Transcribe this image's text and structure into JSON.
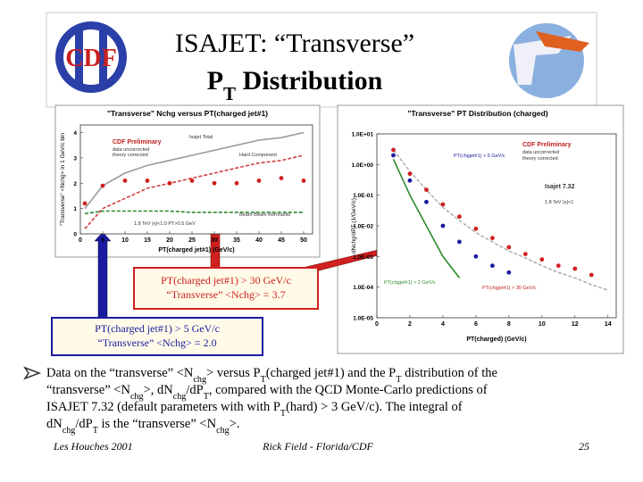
{
  "header": {
    "logo_text": "CDF",
    "title_line1": "ISAJET: “Transverse”",
    "title_line2": [
      "P",
      {
        "sub": "T"
      },
      " Distribution"
    ]
  },
  "chart_data": [
    {
      "type": "line",
      "title": "\"Transverse\" Nchg versus PT(charged jet#1)",
      "x_label": "PT(charged jet#1) (GeV/c)",
      "y_label": "\"Transverse\" <Nchg> in 1 GeV/c bin",
      "x": [
        1,
        5,
        10,
        15,
        20,
        25,
        30,
        35,
        40,
        45,
        50
      ],
      "xlim": [
        0,
        52
      ],
      "xticks": [
        0,
        5,
        10,
        15,
        20,
        25,
        30,
        35,
        40,
        45,
        50
      ],
      "ylim": [
        0,
        4.3
      ],
      "yticks": [
        0,
        1,
        2,
        3,
        4
      ],
      "log_y": false,
      "annotations": [
        "CDF Preliminary",
        "data uncorrected",
        "theory corrected",
        "Isajet Total",
        "Hard Component",
        "Beam-Beam Remnants",
        "1.8 TeV |η|<1.0 PT>0.5 GeV"
      ],
      "series": [
        {
          "name": "Isajet Total",
          "color": "#9a9a9a",
          "style": "line",
          "dashed": false,
          "values": [
            1.0,
            1.9,
            2.4,
            2.7,
            2.9,
            3.1,
            3.3,
            3.5,
            3.7,
            3.8,
            4.0
          ]
        },
        {
          "name": "Hard Component",
          "color": "#d04040",
          "style": "line",
          "dashed": true,
          "values": [
            0.2,
            1.0,
            1.4,
            1.8,
            2.0,
            2.2,
            2.4,
            2.6,
            2.8,
            2.9,
            3.1
          ]
        },
        {
          "name": "Beam-Beam Remnants",
          "color": "#2a8a2a",
          "style": "line",
          "dashed": true,
          "values": [
            0.8,
            0.9,
            0.9,
            0.9,
            0.9,
            0.85,
            0.85,
            0.85,
            0.85,
            0.85,
            0.85
          ]
        },
        {
          "name": "data",
          "color": "#d02020",
          "style": "markers",
          "dashed": false,
          "values": [
            1.2,
            1.9,
            2.1,
            2.1,
            2.0,
            2.1,
            2.0,
            2.0,
            2.1,
            2.2,
            2.1
          ]
        }
      ]
    },
    {
      "type": "line",
      "title": "\"Transverse\" PT Distribution (charged)",
      "x_label": "PT(charged) (GeV/c)",
      "y_label": "dNchg/dPT (1/GeV/c)",
      "x": [
        1,
        2,
        3,
        4,
        5,
        6,
        7,
        8,
        9,
        10,
        11,
        12,
        13,
        14
      ],
      "xlim": [
        0,
        14.5
      ],
      "xticks": [
        0,
        2,
        4,
        6,
        8,
        10,
        12,
        14
      ],
      "ylim": [
        1e-05,
        10
      ],
      "yticks": [
        {
          "value": 10,
          "label": "1.0E+01"
        },
        {
          "value": 1,
          "label": "1.0E+00"
        },
        {
          "value": 0.1,
          "label": "1.0E-01"
        },
        {
          "value": 0.01,
          "label": "1.0E-02"
        },
        {
          "value": 0.001,
          "label": "1.0E-03"
        },
        {
          "value": 0.0001,
          "label": "1.0E-04"
        },
        {
          "value": 1e-05,
          "label": "1.0E-05"
        }
      ],
      "log_y": true,
      "annotations": [
        "CDF Preliminary",
        "data uncorrected",
        "theory corrected",
        "Isajet 7.32",
        "1.8 TeV |η|<1",
        "PT(chgjet#1) > 5 GeV/c",
        "PT(chgjet#1) > 2 GeV/c",
        "PT(chgjet#1) > 30 GeV/c"
      ],
      "series": [
        {
          "name": "Isajet > 30 GeV/c",
          "color": "#b0b0b0",
          "style": "line",
          "dashed": true,
          "values": [
            3,
            0.6,
            0.15,
            0.04,
            0.015,
            0.006,
            0.003,
            0.0015,
            0.0009,
            0.0005,
            0.0003,
            0.0002,
            0.00012,
            8e-05
          ]
        },
        {
          "name": "Isajet > 5 GeV/c",
          "color": "#2a8a2a",
          "style": "line",
          "dashed": false,
          "values": [
            1.5,
            0.1,
            0.01,
            0.001,
            0.0002,
            null,
            null,
            null,
            null,
            null,
            null,
            null,
            null,
            null
          ]
        },
        {
          "name": "data > 30 GeV/c",
          "color": "#d02020",
          "style": "markers",
          "dashed": false,
          "values": [
            3,
            0.5,
            0.15,
            0.05,
            0.02,
            0.008,
            0.004,
            0.002,
            0.0012,
            0.0008,
            0.0005,
            0.0004,
            0.00025,
            null
          ]
        },
        {
          "name": "data > 5 GeV/c",
          "color": "#1a1aa0",
          "style": "markers",
          "dashed": false,
          "values": [
            2,
            0.3,
            0.06,
            0.01,
            0.003,
            0.001,
            0.0005,
            0.0003,
            null,
            null,
            null,
            null,
            null,
            null
          ]
        }
      ]
    }
  ],
  "callouts": [
    {
      "color": "#d02020",
      "lines": [
        "PT(charged jet#1) > 30 GeV/c",
        "“Transverse” <Nchg> = 3.7"
      ]
    },
    {
      "color": "#1a1aa0",
      "lines": [
        "PT(charged jet#1) > 5 GeV/c",
        "“Transverse” <Nchg> = 2.0"
      ]
    }
  ],
  "body": {
    "lines": [
      [
        "Data on the “transverse” <N",
        {
          "sub": "chg"
        },
        "> versus P",
        {
          "sub": "T"
        },
        "(charged jet#1) and the P",
        {
          "sub": "T"
        },
        " distribution of the"
      ],
      [
        "“transverse” <N",
        {
          "sub": "chg"
        },
        ">, dN",
        {
          "sub": "chg"
        },
        "/dP",
        {
          "sub": "T"
        },
        ", compared with the QCD Monte-Carlo predictions of"
      ],
      [
        "ISAJET 7.32 (default parameters with with P",
        {
          "sub": "T"
        },
        "(hard) > 3 GeV/c). The integral of"
      ],
      [
        "dN",
        {
          "sub": "chg"
        },
        "/dP",
        {
          "sub": "T"
        },
        " is the “transverse” <N",
        {
          "sub": "chg"
        },
        ">."
      ]
    ]
  },
  "footer": {
    "left": "Les Houches 2001",
    "center": "Rick Field - Florida/CDF",
    "right": "25"
  }
}
